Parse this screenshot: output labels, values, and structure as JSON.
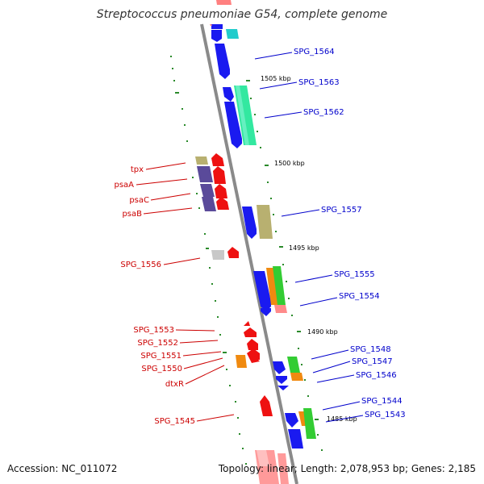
{
  "title": "Streptococcus pneumoniae G54, complete genome",
  "footer": {
    "accession": "Accession: NC_011072",
    "summary": "Topology: linear; Length: 2,078,953 bp; Genes: 2,185"
  },
  "colors": {
    "backbone": "#888888",
    "forward_label": "#0000cc",
    "reverse_label": "#cc0000",
    "tick": "#228822",
    "blue_gene": "#1a1af0",
    "red_gene": "#ee1111"
  },
  "scale_labels": [
    "1505 kbp",
    "1500 kbp",
    "1495 kbp",
    "1490 kbp",
    "1485 kbp"
  ],
  "genes_right": [
    "SPG_1564",
    "SPG_1563",
    "SPG_1562",
    "SPG_1557",
    "SPG_1555",
    "SPG_1554",
    "SPG_1548",
    "SPG_1547",
    "SPG_1546",
    "SPG_1544",
    "SPG_1543"
  ],
  "genes_left": [
    "tpx",
    "psaA",
    "psaC",
    "psaB",
    "SPG_1556",
    "SPG_1553",
    "SPG_1552",
    "SPG_1551",
    "SPG_1550",
    "dtxR",
    "SPG_1545"
  ]
}
